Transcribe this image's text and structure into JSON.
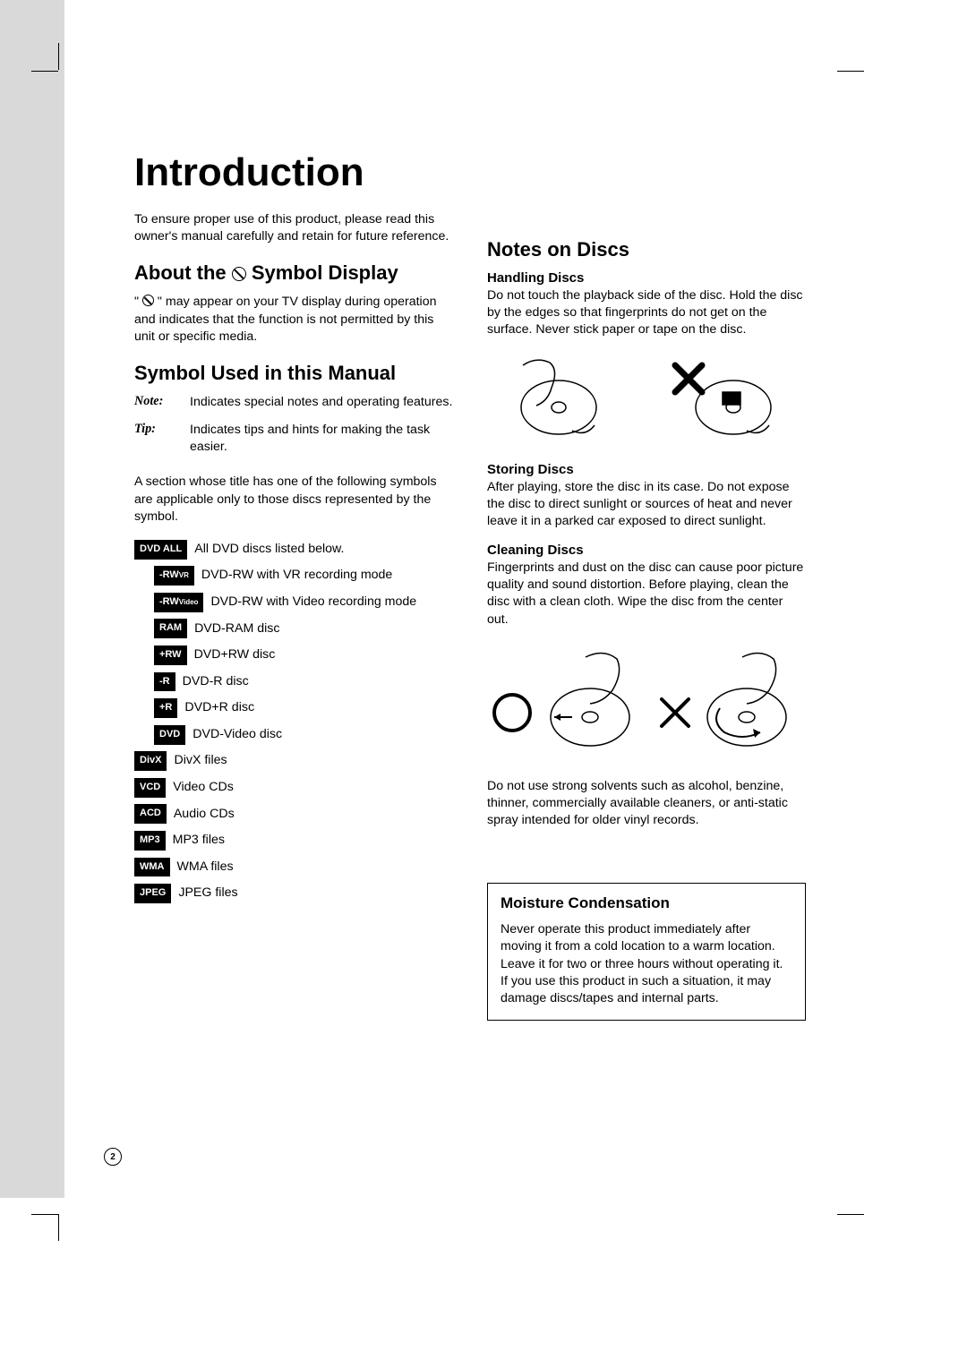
{
  "title": "Introduction",
  "intro_para": "To ensure proper use of this product, please read this owner's manual carefully and retain for future reference.",
  "section_about_prefix": "About the ",
  "section_about_suffix": " Symbol Display",
  "about_para_prefix": "\" ",
  "about_para_suffix": " \" may appear on your TV display during operation and indicates that the function is not permitted by this unit or specific media.",
  "section_symbol_used": "Symbol Used in this Manual",
  "note_label": "Note:",
  "note_text": "Indicates special notes and operating features.",
  "tip_label": "Tip:",
  "tip_text": "Indicates tips and hints for making the task easier.",
  "symbols_intro": "A section whose title has one of the following symbols are applicable only to those discs represented by the symbol.",
  "symbol_rows": [
    {
      "indent": false,
      "badge": "DVD ALL",
      "text": "All DVD discs listed below."
    },
    {
      "indent": true,
      "badge": "-RWVR",
      "text": "DVD-RW with VR recording mode"
    },
    {
      "indent": true,
      "badge": "-RWVideo",
      "text": "DVD-RW with Video recording mode"
    },
    {
      "indent": true,
      "badge": "RAM",
      "text": "DVD-RAM disc"
    },
    {
      "indent": true,
      "badge": "+RW",
      "text": "DVD+RW disc"
    },
    {
      "indent": true,
      "badge": "-R",
      "text": "DVD-R disc"
    },
    {
      "indent": true,
      "badge": "+R",
      "text": "DVD+R disc"
    },
    {
      "indent": true,
      "badge": "DVD",
      "text": "DVD-Video disc"
    },
    {
      "indent": false,
      "badge": "DivX",
      "text": "DivX files"
    },
    {
      "indent": false,
      "badge": "VCD",
      "text": "Video CDs"
    },
    {
      "indent": false,
      "badge": "ACD",
      "text": "Audio CDs"
    },
    {
      "indent": false,
      "badge": "MP3",
      "text": "MP3 files"
    },
    {
      "indent": false,
      "badge": "WMA",
      "text": "WMA files"
    },
    {
      "indent": false,
      "badge": "JPEG",
      "text": "JPEG files"
    }
  ],
  "section_notes_discs": "Notes on Discs",
  "handling_head": "Handling Discs",
  "handling_para": "Do not touch the playback side of the disc. Hold the disc by the edges so that fingerprints do not get on the surface. Never stick paper or tape on the disc.",
  "storing_head": "Storing Discs",
  "storing_para": "After playing, store the disc in its case. Do not expose the disc to direct sunlight or sources of heat and never leave it in a parked car exposed to direct sunlight.",
  "cleaning_head": "Cleaning Discs",
  "cleaning_para": "Fingerprints and dust on the disc can cause poor picture quality and sound distortion. Before playing, clean the disc with a clean cloth. Wipe the disc from the center out.",
  "solvent_para": "Do not use strong solvents such as alcohol, benzine, thinner, commercially available cleaners, or anti-static spray intended for older vinyl records.",
  "moisture_head": "Moisture Condensation",
  "moisture_para": "Never operate this product immediately after moving it from a cold location to a warm location. Leave it for two or three hours without operating it. If you use this product in such a situation, it may damage discs/tapes and internal parts.",
  "page_number": "2"
}
